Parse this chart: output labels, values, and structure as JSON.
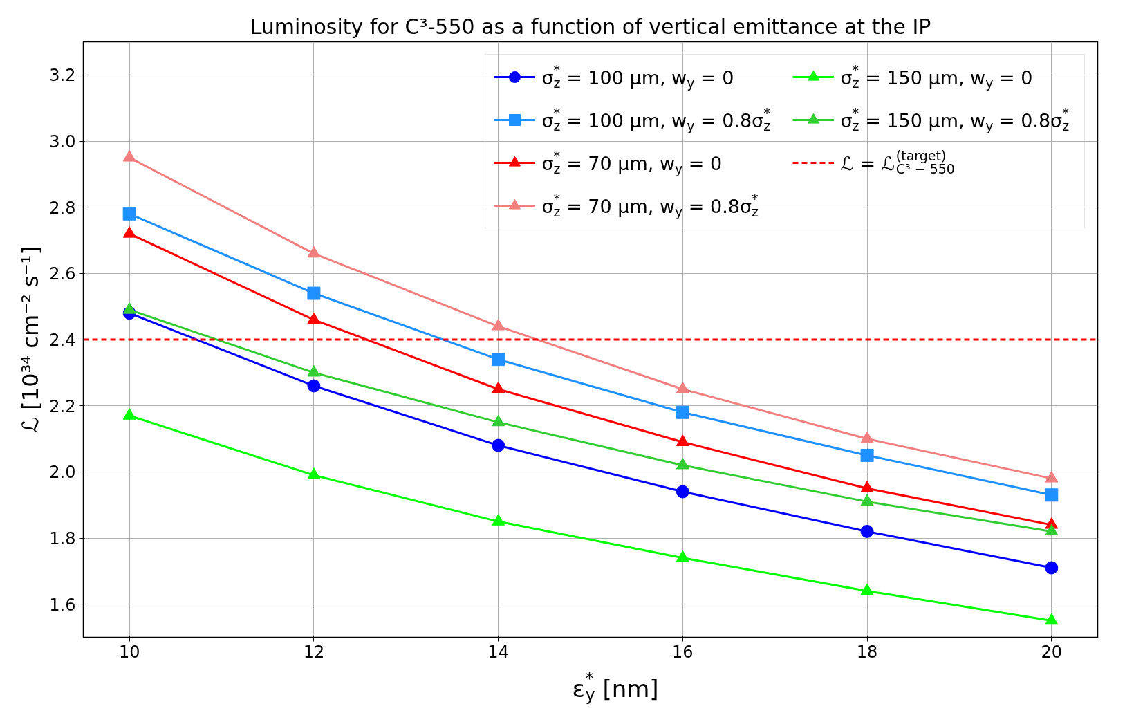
{
  "chart_data": {
    "type": "line",
    "title": "Luminosity for C³-550 as a function of vertical emittance at the IP",
    "xlabel": "ε$_{y}$$^{*}$ [nm]",
    "ylabel": "ℒ [10³⁴ cm⁻² s⁻¹]",
    "x": [
      10,
      12,
      14,
      16,
      18,
      20
    ],
    "xlim": [
      9.5,
      20.5
    ],
    "xticks": [
      10,
      12,
      14,
      16,
      18,
      20
    ],
    "ylim": [
      1.5,
      3.3
    ],
    "yticks": [
      1.6,
      1.8,
      {
        "value": 2,
        "label": "2.0"
      },
      2.2,
      2.4,
      2.6,
      2.8,
      {
        "value": 3,
        "label": "3.0"
      },
      3.2
    ],
    "grid": true,
    "legend": "top right",
    "line_style": "solid",
    "series": [
      {
        "name": "σ$_{z}$$^{*}$ = 100 µm, w$_{y}$ = 0",
        "color": "#0000ff",
        "marker": "circle",
        "values": [
          2.48,
          2.26,
          2.08,
          1.94,
          1.82,
          1.71
        ]
      },
      {
        "name": "σ$_{z}$$^{*}$ = 100 µm, w$_{y}$ = 0.8σ$_{z}$$^{*}$",
        "color": "#1e90ff",
        "marker": "square",
        "values": [
          2.78,
          2.54,
          2.34,
          2.18,
          2.05,
          1.93
        ]
      },
      {
        "name": "σ$_{z}$$^{*}$ = 70 µm, w$_{y}$ = 0",
        "color": "#ff0000",
        "marker": "triangle",
        "values": [
          2.72,
          2.46,
          2.25,
          2.09,
          1.95,
          1.84
        ]
      },
      {
        "name": "σ$_{z}$$^{*}$ = 70 µm, w$_{y}$ = 0.8σ$_{z}$$^{*}$",
        "color": "#f08080",
        "marker": "triangle",
        "values": [
          2.95,
          2.66,
          2.44,
          2.25,
          2.1,
          1.98
        ]
      },
      {
        "name": "σ$_{z}$$^{*}$ = 150 µm, w$_{y}$ = 0",
        "color": "#00ff00",
        "marker": "triangle",
        "values": [
          2.17,
          1.99,
          1.85,
          1.74,
          1.64,
          1.55
        ]
      },
      {
        "name": "σ$_{z}$$^{*}$ = 150 µm, w$_{y}$ = 0.8σ$_{z}$$^{*}$",
        "color": "#32cd32",
        "marker": "triangle",
        "values": [
          2.49,
          2.3,
          2.15,
          2.02,
          1.91,
          1.82
        ]
      }
    ],
    "ref_lines": [
      {
        "axis": "y",
        "value": 2.4,
        "label": "ℒ = ℒ$_{C³ − 550}$$^{(target)}$",
        "color": "#ff0000",
        "line_style": "dashed"
      }
    ]
  }
}
